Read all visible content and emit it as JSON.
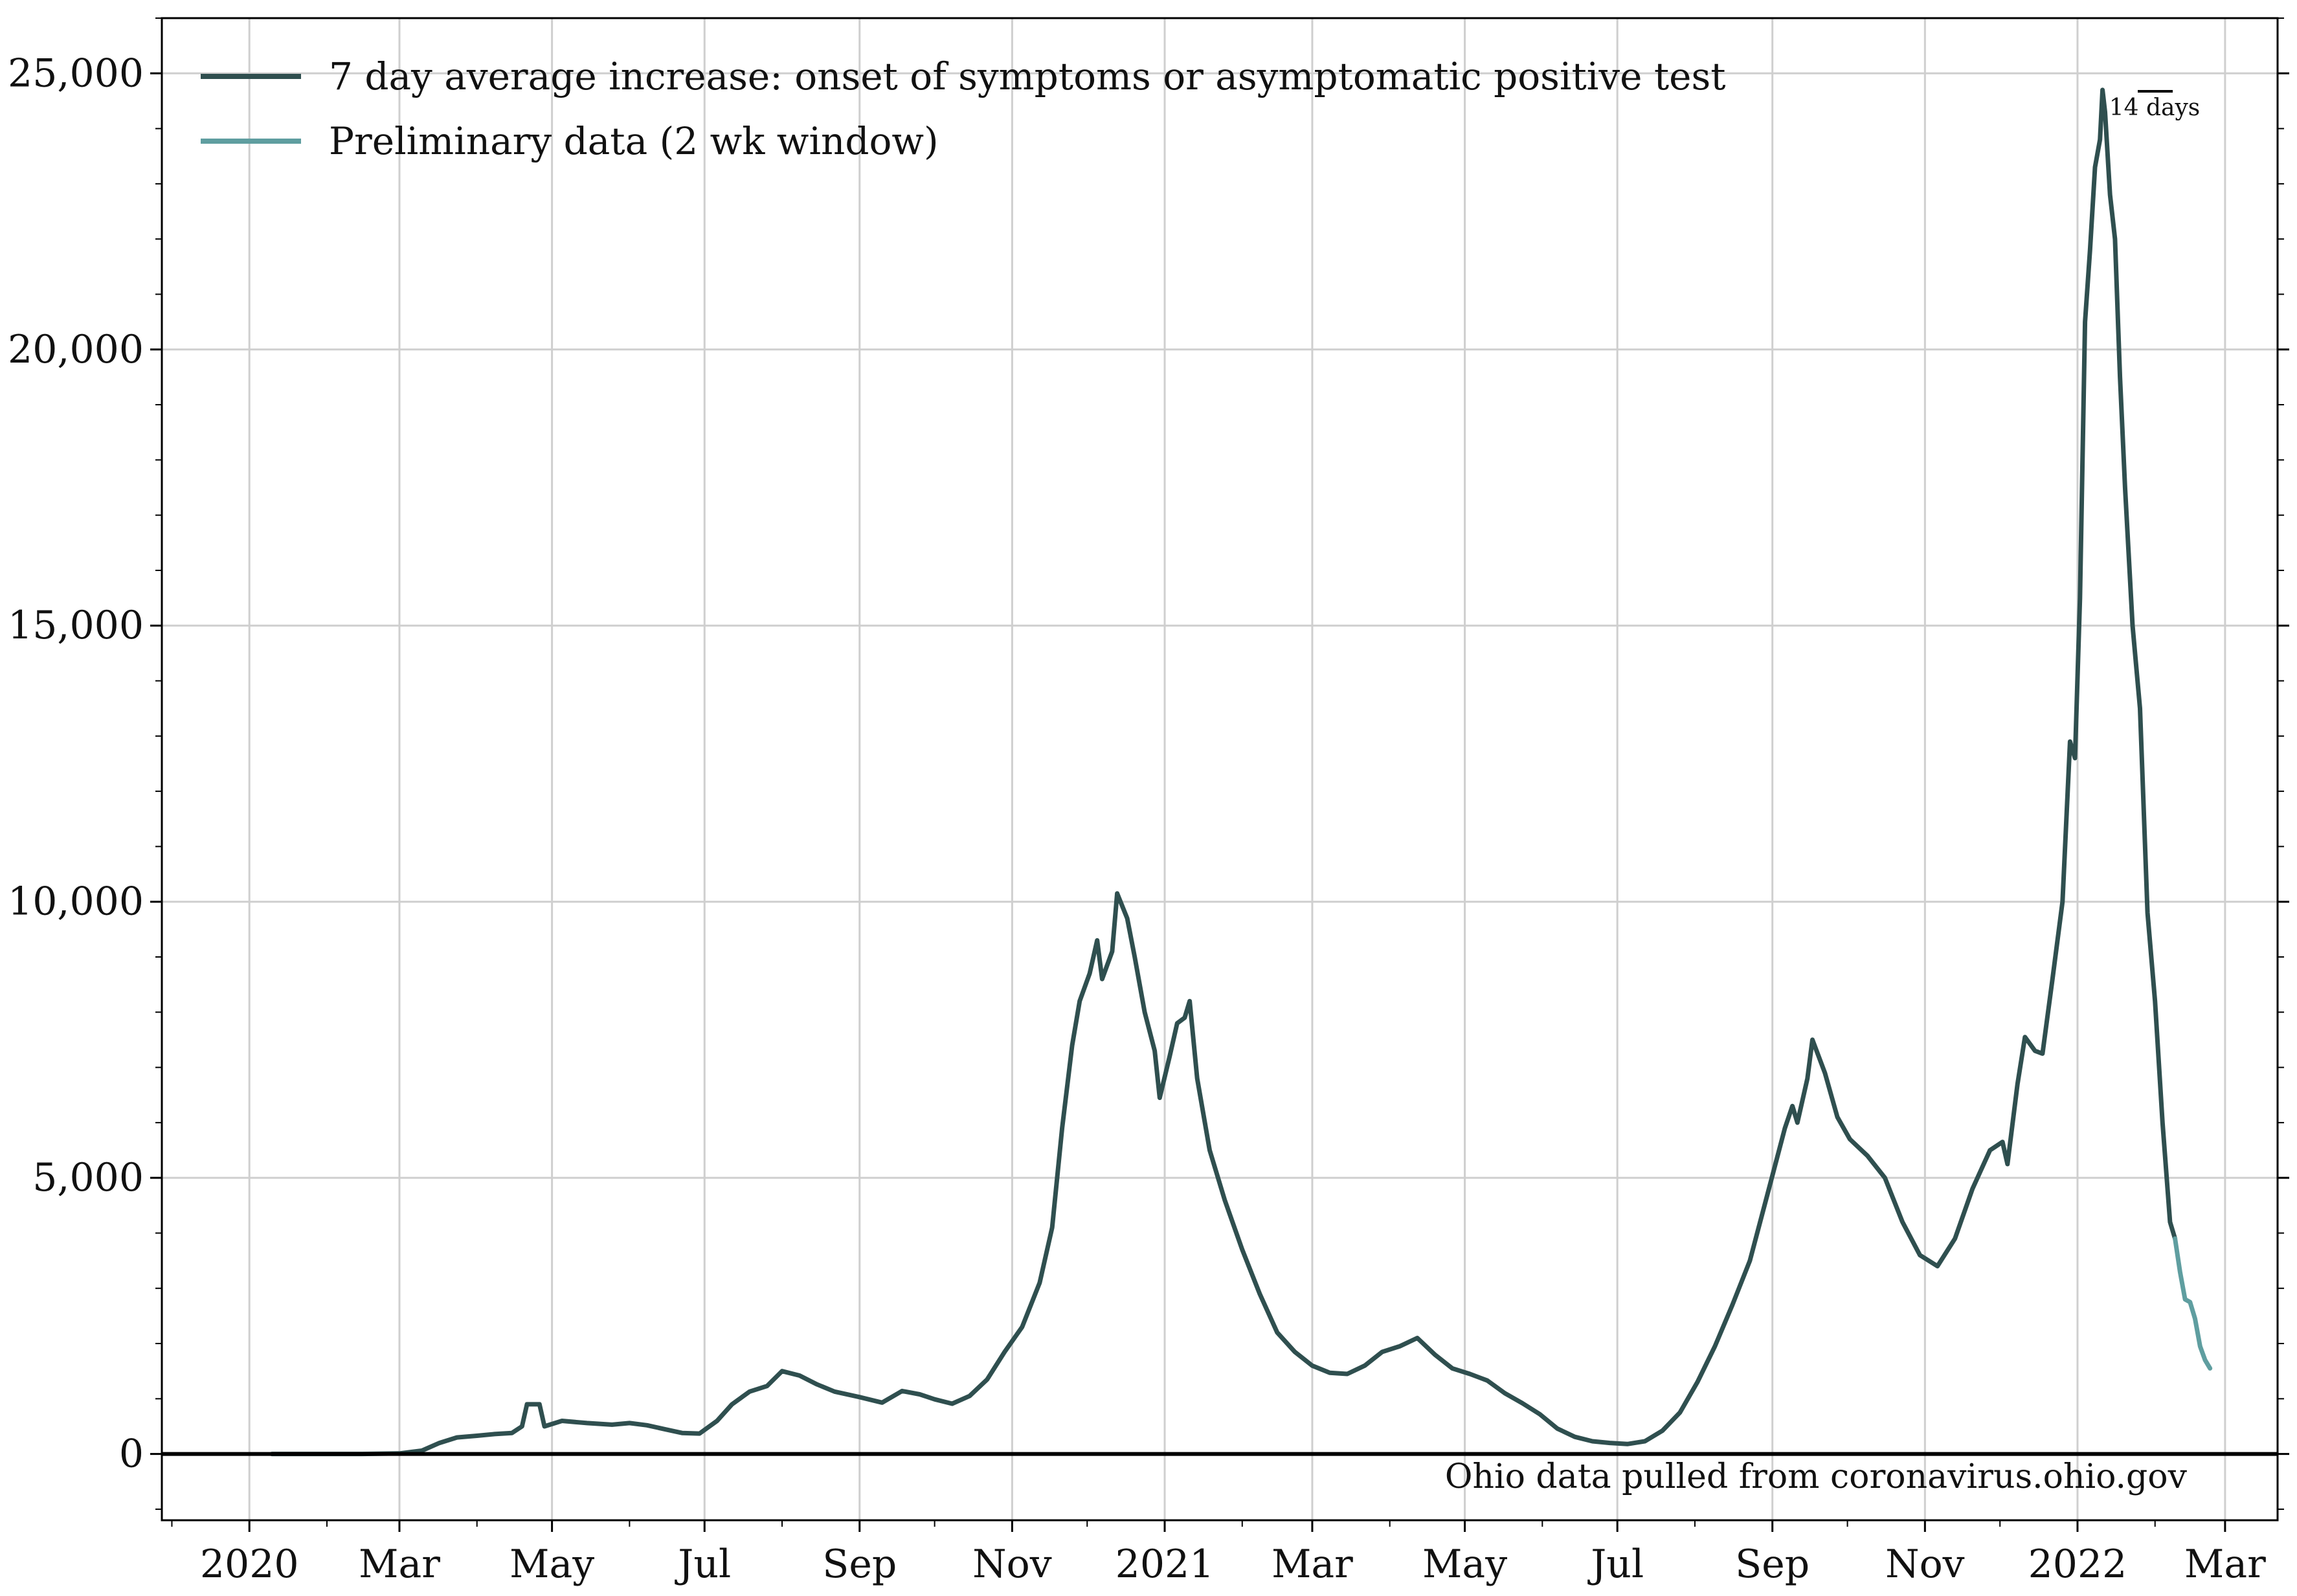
{
  "colors": {
    "main_series": "#2f4f4f",
    "preliminary_series": "#5f9ea0",
    "zero_line": "#000000",
    "grid": "#cfcfcf"
  },
  "source_note": "Ohio data pulled from coronavirus.ohio.gov",
  "scale_bar_label": "14 days",
  "chart_data": {
    "type": "line",
    "title": "",
    "xlabel": "",
    "ylabel": "",
    "grid": true,
    "legend_position": "top-left",
    "x_axis_type": "date",
    "xlim": [
      "2019-11-27",
      "2022-03-22"
    ],
    "ylim": [
      -1200,
      26000
    ],
    "y_ticks": [
      0,
      5000,
      10000,
      15000,
      20000,
      25000
    ],
    "y_tick_labels": [
      "0",
      "5,000",
      "10,000",
      "15,000",
      "20,000",
      "25,000"
    ],
    "x_ticks": [
      "2020-01-01",
      "2020-03-01",
      "2020-05-01",
      "2020-07-01",
      "2020-09-01",
      "2020-11-01",
      "2021-01-01",
      "2021-03-01",
      "2021-05-01",
      "2021-07-01",
      "2021-09-01",
      "2021-11-01",
      "2022-01-01",
      "2022-03-01"
    ],
    "x_tick_labels": [
      "2020",
      "Mar",
      "May",
      "Jul",
      "Sep",
      "Nov",
      "2021",
      "Mar",
      "May",
      "Jul",
      "Sep",
      "Nov",
      "2022",
      "Mar"
    ],
    "series": [
      {
        "name": "7 day average increase: onset of symptoms or asymptomatic positive test",
        "points": [
          [
            "2020-01-10",
            0
          ],
          [
            "2020-02-15",
            0
          ],
          [
            "2020-03-01",
            10
          ],
          [
            "2020-03-10",
            60
          ],
          [
            "2020-03-17",
            200
          ],
          [
            "2020-03-24",
            300
          ],
          [
            "2020-04-01",
            330
          ],
          [
            "2020-04-08",
            360
          ],
          [
            "2020-04-15",
            380
          ],
          [
            "2020-04-19",
            500
          ],
          [
            "2020-04-21",
            900
          ],
          [
            "2020-04-26",
            900
          ],
          [
            "2020-04-28",
            500
          ],
          [
            "2020-05-05",
            600
          ],
          [
            "2020-05-15",
            560
          ],
          [
            "2020-05-25",
            530
          ],
          [
            "2020-06-01",
            560
          ],
          [
            "2020-06-08",
            520
          ],
          [
            "2020-06-15",
            450
          ],
          [
            "2020-06-22",
            380
          ],
          [
            "2020-06-29",
            370
          ],
          [
            "2020-07-06",
            600
          ],
          [
            "2020-07-12",
            900
          ],
          [
            "2020-07-19",
            1130
          ],
          [
            "2020-07-26",
            1230
          ],
          [
            "2020-08-01",
            1500
          ],
          [
            "2020-08-08",
            1420
          ],
          [
            "2020-08-15",
            1260
          ],
          [
            "2020-08-22",
            1130
          ],
          [
            "2020-09-01",
            1030
          ],
          [
            "2020-09-10",
            930
          ],
          [
            "2020-09-18",
            1140
          ],
          [
            "2020-09-25",
            1080
          ],
          [
            "2020-10-01",
            990
          ],
          [
            "2020-10-08",
            910
          ],
          [
            "2020-10-15",
            1050
          ],
          [
            "2020-10-22",
            1350
          ],
          [
            "2020-10-29",
            1850
          ],
          [
            "2020-11-05",
            2300
          ],
          [
            "2020-11-12",
            3100
          ],
          [
            "2020-11-17",
            4100
          ],
          [
            "2020-11-21",
            5900
          ],
          [
            "2020-11-25",
            7400
          ],
          [
            "2020-11-28",
            8200
          ],
          [
            "2020-12-02",
            8700
          ],
          [
            "2020-12-05",
            9300
          ],
          [
            "2020-12-07",
            8600
          ],
          [
            "2020-12-11",
            9100
          ],
          [
            "2020-12-13",
            10150
          ],
          [
            "2020-12-17",
            9700
          ],
          [
            "2020-12-20",
            9000
          ],
          [
            "2020-12-24",
            8000
          ],
          [
            "2020-12-28",
            7300
          ],
          [
            "2020-12-30",
            6450
          ],
          [
            "2021-01-03",
            7200
          ],
          [
            "2021-01-06",
            7800
          ],
          [
            "2021-01-09",
            7900
          ],
          [
            "2021-01-11",
            8200
          ],
          [
            "2021-01-14",
            6800
          ],
          [
            "2021-01-19",
            5500
          ],
          [
            "2021-01-25",
            4600
          ],
          [
            "2021-02-01",
            3700
          ],
          [
            "2021-02-08",
            2900
          ],
          [
            "2021-02-15",
            2200
          ],
          [
            "2021-02-22",
            1850
          ],
          [
            "2021-03-01",
            1600
          ],
          [
            "2021-03-08",
            1470
          ],
          [
            "2021-03-15",
            1450
          ],
          [
            "2021-03-22",
            1600
          ],
          [
            "2021-03-29",
            1850
          ],
          [
            "2021-04-05",
            1950
          ],
          [
            "2021-04-12",
            2100
          ],
          [
            "2021-04-19",
            1800
          ],
          [
            "2021-04-26",
            1550
          ],
          [
            "2021-05-03",
            1450
          ],
          [
            "2021-05-10",
            1330
          ],
          [
            "2021-05-17",
            1100
          ],
          [
            "2021-05-24",
            920
          ],
          [
            "2021-05-31",
            720
          ],
          [
            "2021-06-07",
            460
          ],
          [
            "2021-06-14",
            310
          ],
          [
            "2021-06-21",
            230
          ],
          [
            "2021-06-28",
            200
          ],
          [
            "2021-07-05",
            180
          ],
          [
            "2021-07-12",
            230
          ],
          [
            "2021-07-19",
            420
          ],
          [
            "2021-07-26",
            750
          ],
          [
            "2021-08-02",
            1300
          ],
          [
            "2021-08-09",
            1950
          ],
          [
            "2021-08-16",
            2700
          ],
          [
            "2021-08-23",
            3500
          ],
          [
            "2021-08-30",
            4700
          ],
          [
            "2021-09-06",
            5900
          ],
          [
            "2021-09-09",
            6300
          ],
          [
            "2021-09-11",
            6000
          ],
          [
            "2021-09-15",
            6800
          ],
          [
            "2021-09-17",
            7500
          ],
          [
            "2021-09-22",
            6900
          ],
          [
            "2021-09-27",
            6100
          ],
          [
            "2021-10-02",
            5700
          ],
          [
            "2021-10-09",
            5400
          ],
          [
            "2021-10-16",
            5000
          ],
          [
            "2021-10-23",
            4200
          ],
          [
            "2021-10-30",
            3600
          ],
          [
            "2021-11-06",
            3400
          ],
          [
            "2021-11-13",
            3900
          ],
          [
            "2021-11-20",
            4800
          ],
          [
            "2021-11-27",
            5500
          ],
          [
            "2021-12-02",
            5650
          ],
          [
            "2021-12-04",
            5250
          ],
          [
            "2021-12-08",
            6700
          ],
          [
            "2021-12-11",
            7550
          ],
          [
            "2021-12-15",
            7300
          ],
          [
            "2021-12-18",
            7250
          ],
          [
            "2021-12-22",
            8600
          ],
          [
            "2021-12-26",
            10000
          ],
          [
            "2021-12-29",
            12900
          ],
          [
            "2021-12-31",
            12600
          ],
          [
            "2022-01-02",
            15500
          ],
          [
            "2022-01-04",
            20500
          ],
          [
            "2022-01-06",
            21800
          ],
          [
            "2022-01-08",
            23300
          ],
          [
            "2022-01-10",
            23800
          ],
          [
            "2022-01-11",
            24700
          ],
          [
            "2022-01-12",
            24300
          ],
          [
            "2022-01-14",
            22800
          ],
          [
            "2022-01-16",
            22000
          ],
          [
            "2022-01-18",
            19500
          ],
          [
            "2022-01-20",
            17500
          ],
          [
            "2022-01-23",
            15000
          ],
          [
            "2022-01-26",
            13500
          ],
          [
            "2022-01-29",
            9800
          ],
          [
            "2022-02-01",
            8200
          ],
          [
            "2022-02-04",
            6000
          ],
          [
            "2022-02-07",
            4200
          ],
          [
            "2022-02-09",
            3900
          ]
        ]
      },
      {
        "name": "Preliminary data (2 wk window)",
        "points": [
          [
            "2022-02-09",
            3900
          ],
          [
            "2022-02-11",
            3300
          ],
          [
            "2022-02-13",
            2800
          ],
          [
            "2022-02-15",
            2750
          ],
          [
            "2022-02-17",
            2450
          ],
          [
            "2022-02-19",
            1950
          ],
          [
            "2022-02-21",
            1700
          ],
          [
            "2022-02-23",
            1550
          ]
        ]
      }
    ]
  }
}
